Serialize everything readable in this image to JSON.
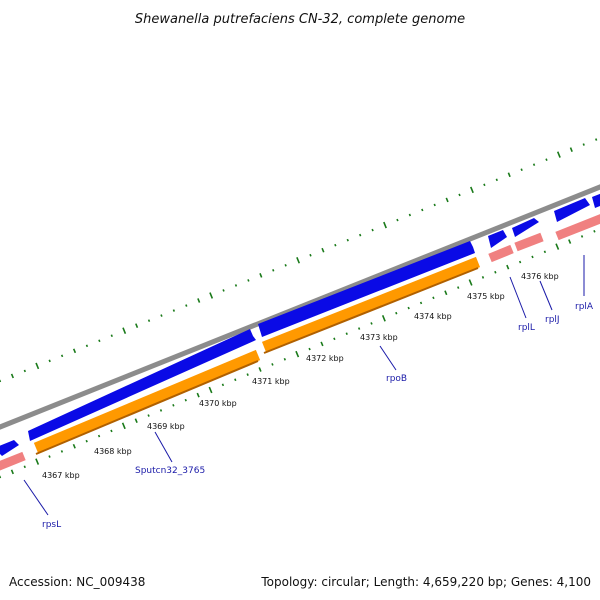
{
  "header": {
    "title": "Shewanella putrefaciens CN-32, complete genome"
  },
  "footer": {
    "accession": "Accession: NC_009438",
    "summary": "Topology: circular; Length: 4,659,220 bp; Genes: 4,100"
  },
  "colors": {
    "backbone": "#8c8c8c",
    "cds_forward": "#0a0ae6",
    "cds_reverse_operon": "#ff9900",
    "rrna_like": "#f08080",
    "gc_ticks": "#1a7a1a",
    "label_line": "#1a1aa8"
  },
  "map": {
    "tick_labels": [
      "4367 kbp",
      "4368 kbp",
      "4369 kbp",
      "4370 kbp",
      "4371 kbp",
      "4372 kbp",
      "4373 kbp",
      "4374 kbp",
      "4375 kbp",
      "4376 kbp"
    ],
    "gene_labels": [
      "rpsL",
      "Sputcn32_3765",
      "rpoB",
      "rplL",
      "rplJ",
      "rplA"
    ]
  }
}
